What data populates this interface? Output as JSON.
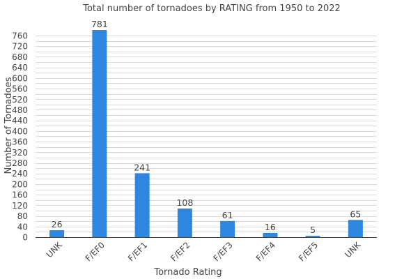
{
  "chart_data": {
    "type": "bar",
    "title": "Total number of tornadoes by RATING from 1950 to 2022",
    "xlabel": "Tornado Rating",
    "ylabel": "Number of Tornadoes",
    "categories": [
      "UNK",
      "F/EF0",
      "F/EF1",
      "F/EF2",
      "F/EF3",
      "F/EF4",
      "F/EF5",
      "UNK"
    ],
    "values": [
      26,
      781,
      241,
      108,
      61,
      16,
      5,
      65
    ],
    "ylim": [
      0,
      781
    ],
    "yticks": [
      0,
      20,
      40,
      60,
      80,
      100,
      120,
      140,
      160,
      180,
      200,
      220,
      240,
      260,
      280,
      300,
      320,
      340,
      360,
      380,
      400,
      420,
      440,
      460,
      480,
      500,
      520,
      540,
      560,
      580,
      600,
      620,
      640,
      660,
      680,
      700,
      720,
      740,
      760
    ],
    "ytick_labels": [
      "0",
      "40",
      "80",
      "120",
      "160",
      "200",
      "240",
      "280",
      "320",
      "360",
      "400",
      "440",
      "480",
      "520",
      "560",
      "600",
      "640",
      "680",
      "720",
      "760"
    ],
    "grid": true,
    "bar_color": "#2f86de",
    "show_data_labels": true
  }
}
